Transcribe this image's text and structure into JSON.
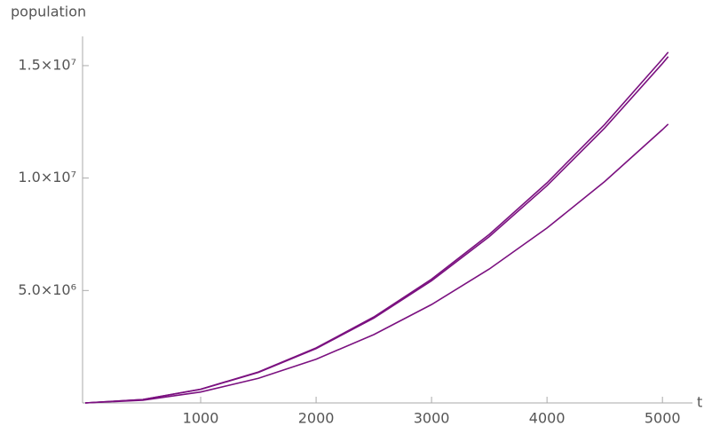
{
  "chart_data": {
    "type": "line",
    "y_label": "population",
    "x_label": "t",
    "x": [
      0,
      500,
      1000,
      1500,
      2000,
      2500,
      3000,
      3500,
      4000,
      4500,
      5000,
      5050
    ],
    "series": [
      {
        "color": "#7b1180",
        "values": [
          0,
          153000,
          612000,
          1376000,
          2447000,
          3823000,
          5505000,
          7493000,
          9787000,
          12387000,
          15293000,
          15600000
        ]
      },
      {
        "color": "#7b1180",
        "values": [
          0,
          151000,
          604000,
          1358000,
          2415000,
          3773000,
          5434000,
          7396000,
          9661000,
          12226000,
          15094000,
          15400000
        ]
      },
      {
        "color": "#7b1180",
        "values": [
          0,
          122000,
          486000,
          1094000,
          1945000,
          3039000,
          4376000,
          5956000,
          7779000,
          9846000,
          12155000,
          12400000
        ]
      }
    ],
    "xlim": [
      0,
      5260
    ],
    "ylim": [
      0,
      16300000
    ],
    "xticks": [
      1000,
      2000,
      3000,
      4000,
      5000
    ],
    "yticks": [
      {
        "value": 5000000,
        "label": "5.0×10⁶"
      },
      {
        "value": 10000000,
        "label": "1.0×10⁷"
      },
      {
        "value": 15000000,
        "label": "1.5×10⁷"
      }
    ],
    "grid": false
  }
}
